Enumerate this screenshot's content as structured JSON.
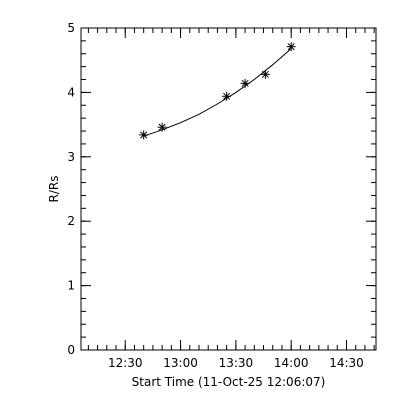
{
  "chart_data": {
    "type": "scatter",
    "title": "",
    "xlabel": "Start Time (11-Oct-25 12:06:07)",
    "ylabel": "R/Rs",
    "x_tick_labels": [
      "12:30",
      "13:00",
      "13:30",
      "14:00",
      "14:30"
    ],
    "x_ticks": [
      "12:30",
      "13:00",
      "13:30",
      "14:00",
      "14:30"
    ],
    "x_minor_step_minutes": 5,
    "xlim": [
      "12:06",
      "14:46"
    ],
    "y_tick_labels": [
      "0",
      "1",
      "2",
      "3",
      "4",
      "5"
    ],
    "y_ticks": [
      0,
      1,
      2,
      3,
      4,
      5
    ],
    "y_minor_step": 0.2,
    "ylim": [
      0,
      5
    ],
    "grid": false,
    "legend": "none",
    "marker": "asterisk",
    "series": [
      {
        "x": [
          "12:40",
          "12:50",
          "13:25",
          "13:35",
          "13:46",
          "14:00"
        ],
        "y": [
          3.34,
          3.46,
          3.94,
          4.14,
          4.28,
          4.71
        ]
      }
    ],
    "fit_curve": {
      "type": "quadratic",
      "x": [
        "12:40",
        "12:50",
        "13:00",
        "13:10",
        "13:20",
        "13:30",
        "13:40",
        "13:50",
        "14:00"
      ],
      "y": [
        3.32,
        3.42,
        3.53,
        3.66,
        3.82,
        4.0,
        4.2,
        4.43,
        4.68
      ]
    },
    "colors": {
      "background": "#ffffff",
      "axes": "#000000",
      "marks": "#000000"
    }
  }
}
